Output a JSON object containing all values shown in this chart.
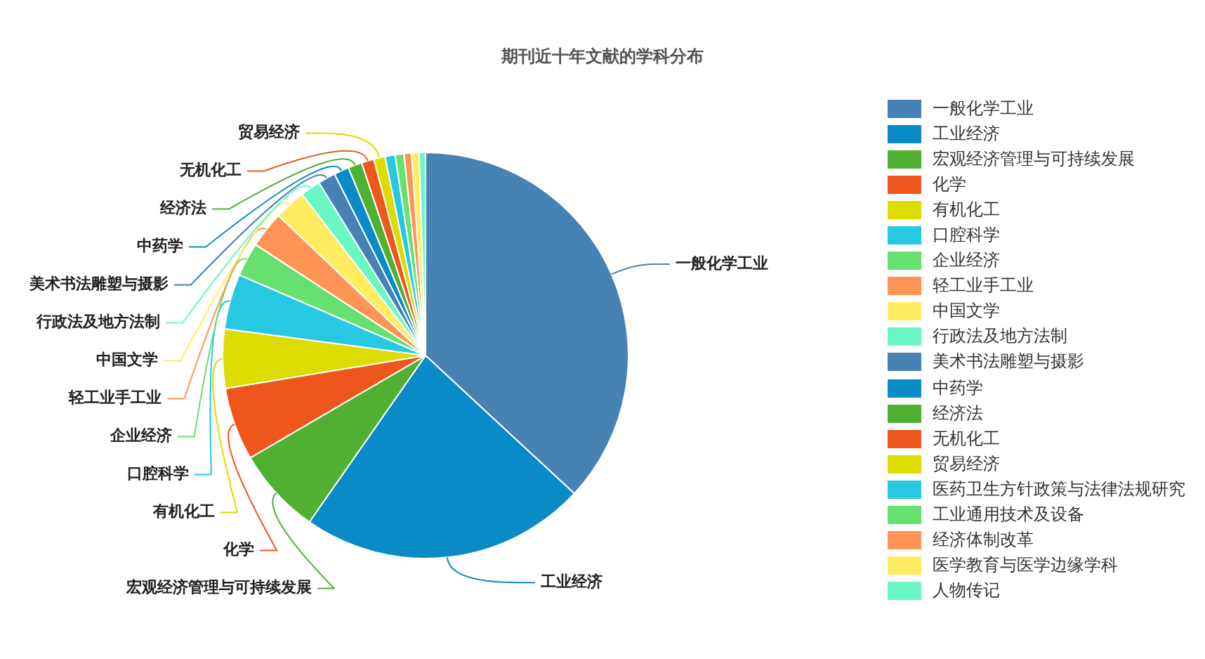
{
  "chart_data": {
    "type": "pie",
    "title": "期刊近十年文献的学科分布",
    "legend": "right",
    "categories": [
      "一般化学工业",
      "工业经济",
      "宏观经济管理与可持续发展",
      "化学",
      "有机化工",
      "口腔科学",
      "企业经济",
      "轻工业手工业",
      "中国文学",
      "行政法及地方法制",
      "美术书法雕塑与摄影",
      "中药学",
      "经济法",
      "无机化工",
      "贸易经济",
      "医药卫生方针政策与法律法规研究",
      "工业通用技术及设备",
      "经济体制改革",
      "医学教育与医学边缘学科",
      "人物传记"
    ],
    "values": [
      36.9,
      22.8,
      6.9,
      5.8,
      4.7,
      4.4,
      2.7,
      2.9,
      2.5,
      1.6,
      1.4,
      1.2,
      1.1,
      1.0,
      0.9,
      0.8,
      0.7,
      0.6,
      0.6,
      0.5
    ],
    "colors": [
      "#4682b4",
      "#0a8ac6",
      "#50b032",
      "#ee561e",
      "#dcdc00",
      "#26c8e2",
      "#66e06e",
      "#ff9455",
      "#ffec60",
      "#6af7c4",
      "#4682b4",
      "#0a8ac6",
      "#50b032",
      "#ee561e",
      "#dcdc00",
      "#26c8e2",
      "#66e06e",
      "#ff9455",
      "#ffec60",
      "#6af7c4"
    ],
    "value_labels": [
      "一般化学工业",
      "工业经济",
      "宏观经济管理与可持续发展",
      "化学",
      "有机化工",
      "口腔科学",
      "企业经济",
      "轻工业手工业",
      "中国文学",
      "行政法及地方法制",
      "美术书法雕塑与摄影",
      "中药学",
      "经济法",
      "无机化工",
      "贸易经济",
      null,
      null,
      null,
      null,
      null
    ]
  }
}
